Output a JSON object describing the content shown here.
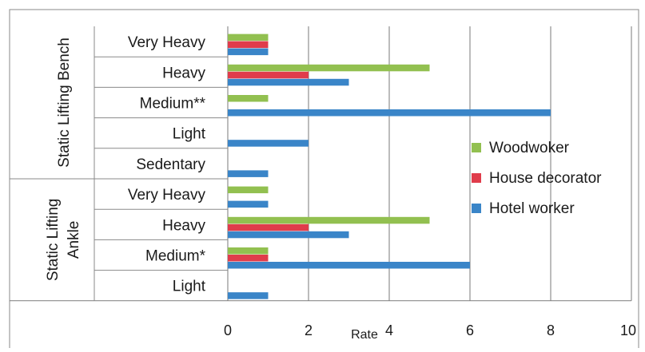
{
  "chart_data": {
    "type": "bar",
    "orientation": "horizontal",
    "title": "",
    "xlabel": "Rate",
    "ylabel": "",
    "xlim": [
      0,
      10
    ],
    "x_ticks": [
      "0",
      "2",
      "4",
      "6",
      "8",
      "10"
    ],
    "grid": true,
    "legend_position": "right",
    "groups": [
      {
        "label": "Static Lifting Bench",
        "categories": [
          "Very Heavy",
          "Heavy",
          "Medium**",
          "Light",
          "Sedentary"
        ]
      },
      {
        "label": "Static Lifting Ankle",
        "categories": [
          "Very Heavy",
          "Heavy",
          "Medium*",
          "Light"
        ]
      }
    ],
    "series": [
      {
        "name": "Woodwoker",
        "color": "#92c050",
        "values": [
          1,
          5,
          1,
          0,
          0,
          1,
          5,
          1,
          0
        ]
      },
      {
        "name": "House decorator",
        "color": "#e03c4b",
        "values": [
          1,
          2,
          0,
          0,
          0,
          0,
          2,
          1,
          0
        ]
      },
      {
        "name": "Hotel worker",
        "color": "#3a85c8",
        "values": [
          1,
          3,
          8,
          2,
          1,
          1,
          3,
          6,
          1
        ]
      }
    ]
  }
}
